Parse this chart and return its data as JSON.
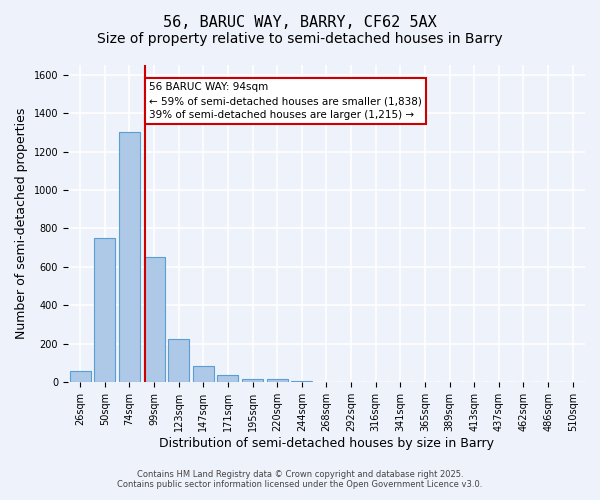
{
  "title": "56, BARUC WAY, BARRY, CF62 5AX",
  "subtitle": "Size of property relative to semi-detached houses in Barry",
  "xlabel": "Distribution of semi-detached houses by size in Barry",
  "ylabel": "Number of semi-detached properties",
  "bin_labels": [
    "26sqm",
    "50sqm",
    "74sqm",
    "99sqm",
    "123sqm",
    "147sqm",
    "171sqm",
    "195sqm",
    "220sqm",
    "244sqm",
    "268sqm",
    "292sqm",
    "316sqm",
    "341sqm",
    "365sqm",
    "389sqm",
    "413sqm",
    "437sqm",
    "462sqm",
    "486sqm",
    "510sqm"
  ],
  "bar_values": [
    60,
    750,
    1300,
    650,
    225,
    85,
    40,
    20,
    15,
    8,
    3,
    2,
    1,
    1,
    0,
    0,
    0,
    0,
    0,
    0,
    0
  ],
  "bar_color": "#aec8e8",
  "bar_edge_color": "#5a9fd4",
  "bg_color": "#eef2fa",
  "grid_color": "#ffffff",
  "property_line_x": 2.62,
  "annotation_text": "56 BARUC WAY: 94sqm\n← 59% of semi-detached houses are smaller (1,838)\n39% of semi-detached houses are larger (1,215) →",
  "annotation_box_color": "#cc0000",
  "ylim": [
    0,
    1650
  ],
  "yticks": [
    0,
    200,
    400,
    600,
    800,
    1000,
    1200,
    1400,
    1600
  ],
  "footer_line1": "Contains HM Land Registry data © Crown copyright and database right 2025.",
  "footer_line2": "Contains public sector information licensed under the Open Government Licence v3.0.",
  "title_fontsize": 11,
  "subtitle_fontsize": 10,
  "tick_fontsize": 7,
  "ylabel_fontsize": 9,
  "xlabel_fontsize": 9
}
